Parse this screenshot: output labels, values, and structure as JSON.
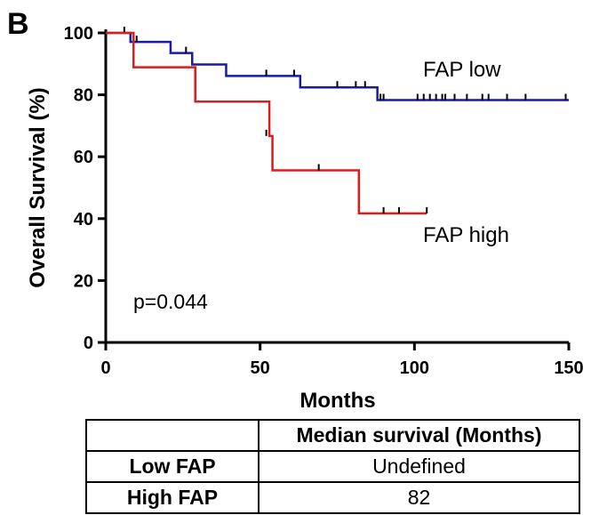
{
  "panel_label": "B",
  "chart_data": {
    "type": "line",
    "subtype": "kaplan-meier",
    "xlabel": "Months",
    "ylabel": "Overall Survival (%)",
    "xlim": [
      0,
      150
    ],
    "ylim": [
      0,
      100
    ],
    "xticks": [
      0,
      50,
      100,
      150
    ],
    "yticks": [
      0,
      20,
      40,
      60,
      80,
      100
    ],
    "grid": false,
    "legend": "none",
    "annotation": "p=0.044",
    "series": [
      {
        "name": "FAP low",
        "color": "#1a1aa6",
        "steps": [
          [
            0,
            100
          ],
          [
            8,
            97.1
          ],
          [
            21,
            93.5
          ],
          [
            28,
            89.8
          ],
          [
            39,
            86.1
          ],
          [
            63,
            82.4
          ],
          [
            88,
            78.3
          ],
          [
            150,
            78.3
          ]
        ],
        "censored": [
          [
            6,
            100
          ],
          [
            10,
            97.1
          ],
          [
            26,
            93.5
          ],
          [
            52,
            86.1
          ],
          [
            61,
            86.1
          ],
          [
            75,
            82.4
          ],
          [
            81,
            82.4
          ],
          [
            84,
            82.4
          ],
          [
            89,
            78.3
          ],
          [
            90,
            78.3
          ],
          [
            101,
            78.3
          ],
          [
            103,
            78.3
          ],
          [
            105,
            78.3
          ],
          [
            107,
            78.3
          ],
          [
            109,
            78.3
          ],
          [
            110,
            78.3
          ],
          [
            113,
            78.3
          ],
          [
            117,
            78.3
          ],
          [
            122,
            78.3
          ],
          [
            124,
            78.3
          ],
          [
            130,
            78.3
          ],
          [
            136,
            78.3
          ],
          [
            149,
            78.3
          ]
        ]
      },
      {
        "name": "FAP high",
        "color": "#d81e1e",
        "steps": [
          [
            0,
            100
          ],
          [
            9,
            88.9
          ],
          [
            29,
            77.8
          ],
          [
            53,
            66.7
          ],
          [
            54,
            55.6
          ],
          [
            82,
            41.7
          ],
          [
            104,
            41.7
          ]
        ],
        "censored": [
          [
            52,
            66.7
          ],
          [
            69,
            55.6
          ],
          [
            90,
            41.7
          ],
          [
            95,
            41.7
          ],
          [
            104,
            41.7
          ]
        ]
      }
    ]
  },
  "table": {
    "header": [
      "",
      "Median survival (Months)"
    ],
    "rows": [
      [
        "Low FAP",
        "Undefined"
      ],
      [
        "High FAP",
        "82"
      ]
    ]
  }
}
